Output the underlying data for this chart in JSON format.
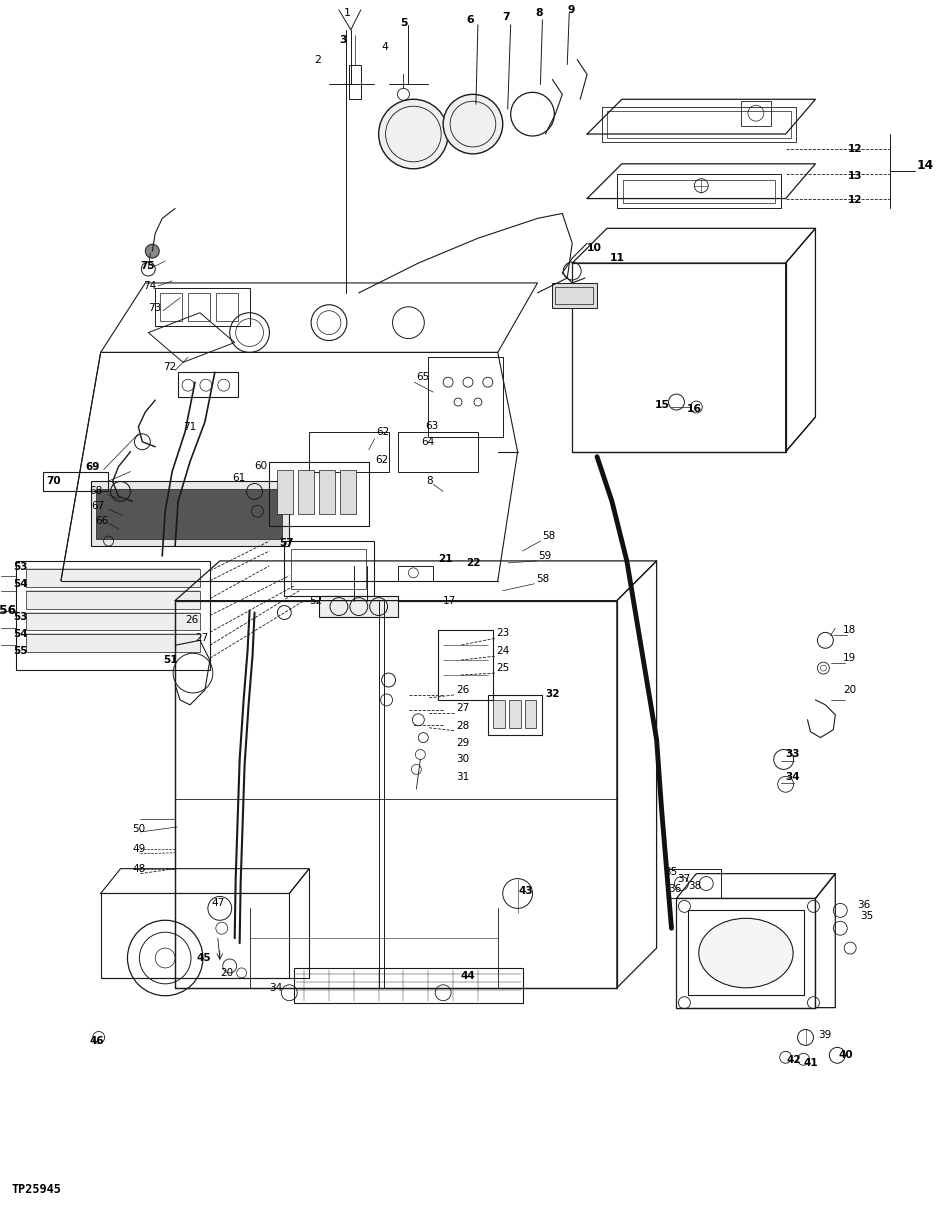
{
  "background_color": "#ffffff",
  "line_color": "#1a1a1a",
  "text_color": "#000000",
  "watermark": "TP25945",
  "fig_width": 9.36,
  "fig_height": 12.12,
  "dpi": 100
}
